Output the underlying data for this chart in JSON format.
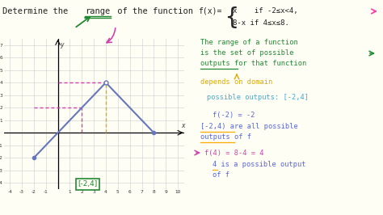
{
  "bg_color": "#fffef5",
  "graph": {
    "xlim": [
      -4.5,
      10.5
    ],
    "ylim": [
      -4.5,
      7.5
    ],
    "xticks": [
      -4,
      -3,
      -2,
      -1,
      1,
      2,
      3,
      4,
      5,
      6,
      7,
      8,
      9,
      10
    ],
    "yticks": [
      -4,
      -3,
      -2,
      -1,
      1,
      2,
      3,
      4,
      5,
      6,
      7
    ],
    "grid_color": "#cccccc",
    "line_color": "#6677bb",
    "line_width": 1.5,
    "dashed_h_color": "#cc44aa",
    "dashed_v_color": "#ddaa00",
    "dashed_linewidth": 1.0
  },
  "box_text": "[-2,4]",
  "box_color": "#228833"
}
